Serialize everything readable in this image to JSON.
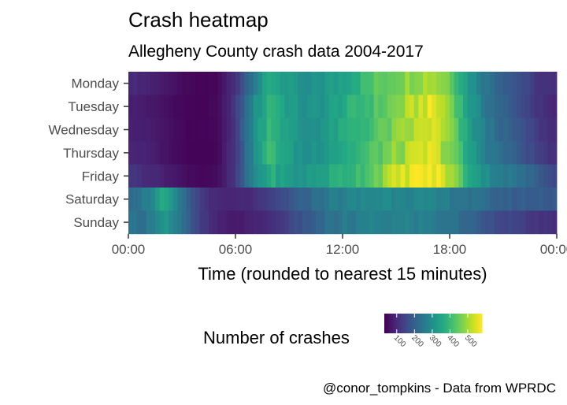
{
  "chart_data": {
    "type": "heatmap",
    "title": "Crash heatmap",
    "subtitle": "Allegheny County crash data 2004-2017",
    "xlabel": "Time (rounded to nearest 15 minutes)",
    "ylabel": "",
    "caption": "@conor_tompkins - Data from WPRDC",
    "x_ticks": [
      "00:00",
      "06:00",
      "12:00",
      "18:00",
      "00:00"
    ],
    "x_range_hours": [
      0,
      24
    ],
    "bin_minutes": 15,
    "days": [
      "Monday",
      "Tuesday",
      "Wednesday",
      "Thursday",
      "Friday",
      "Saturday",
      "Sunday"
    ],
    "legend": {
      "title": "Number of crashes",
      "placement": "bottom",
      "ticks": [
        100,
        200,
        300,
        400,
        500
      ],
      "range": [
        30,
        580
      ],
      "palette": "viridis"
    },
    "day_profiles": [
      {
        "day": "Monday",
        "hours": [
          0,
          1,
          2,
          3,
          4,
          5,
          6,
          7,
          8,
          9,
          10,
          11,
          12,
          13,
          14,
          15,
          16,
          17,
          18,
          19,
          20,
          21,
          22,
          23,
          24
        ],
        "values": [
          100,
          85,
          70,
          45,
          35,
          40,
          110,
          260,
          370,
          320,
          290,
          320,
          350,
          390,
          440,
          470,
          500,
          520,
          470,
          330,
          250,
          200,
          160,
          110,
          100
        ]
      },
      {
        "day": "Tuesday",
        "hours": [
          0,
          1,
          2,
          3,
          4,
          5,
          6,
          7,
          8,
          9,
          10,
          11,
          12,
          13,
          14,
          15,
          16,
          17,
          18,
          19,
          20,
          21,
          22,
          23,
          24
        ],
        "values": [
          80,
          70,
          55,
          40,
          35,
          40,
          120,
          290,
          400,
          330,
          300,
          320,
          360,
          390,
          430,
          470,
          520,
          560,
          490,
          340,
          250,
          200,
          160,
          110,
          80
        ]
      },
      {
        "day": "Wednesday",
        "hours": [
          0,
          1,
          2,
          3,
          4,
          5,
          6,
          7,
          8,
          9,
          10,
          11,
          12,
          13,
          14,
          15,
          16,
          17,
          18,
          19,
          20,
          21,
          22,
          23,
          24
        ],
        "values": [
          85,
          75,
          60,
          40,
          35,
          40,
          120,
          300,
          410,
          330,
          300,
          320,
          360,
          390,
          430,
          470,
          510,
          550,
          480,
          340,
          260,
          210,
          170,
          120,
          90
        ]
      },
      {
        "day": "Thursday",
        "hours": [
          0,
          1,
          2,
          3,
          4,
          5,
          6,
          7,
          8,
          9,
          10,
          11,
          12,
          13,
          14,
          15,
          16,
          17,
          18,
          19,
          20,
          21,
          22,
          23,
          24
        ],
        "values": [
          90,
          80,
          60,
          40,
          35,
          40,
          120,
          290,
          410,
          330,
          300,
          330,
          360,
          390,
          440,
          480,
          520,
          550,
          480,
          350,
          270,
          220,
          180,
          130,
          100
        ]
      },
      {
        "day": "Friday",
        "hours": [
          0,
          1,
          2,
          3,
          4,
          5,
          6,
          7,
          8,
          9,
          10,
          11,
          12,
          13,
          14,
          15,
          16,
          17,
          18,
          19,
          20,
          21,
          22,
          23,
          24
        ],
        "values": [
          120,
          100,
          80,
          55,
          40,
          45,
          120,
          280,
          370,
          320,
          320,
          350,
          380,
          410,
          470,
          530,
          570,
          575,
          520,
          380,
          300,
          260,
          230,
          190,
          150
        ]
      },
      {
        "day": "Saturday",
        "hours": [
          0,
          1,
          2,
          3,
          4,
          5,
          6,
          7,
          8,
          9,
          10,
          11,
          12,
          13,
          14,
          15,
          16,
          17,
          18,
          19,
          20,
          21,
          22,
          23,
          24
        ],
        "values": [
          230,
          260,
          360,
          230,
          130,
          85,
          85,
          100,
          130,
          170,
          210,
          250,
          270,
          280,
          290,
          290,
          280,
          270,
          260,
          240,
          220,
          200,
          190,
          190,
          190
        ]
      },
      {
        "day": "Sunday",
        "hours": [
          0,
          1,
          2,
          3,
          4,
          5,
          6,
          7,
          8,
          9,
          10,
          11,
          12,
          13,
          14,
          15,
          16,
          17,
          18,
          19,
          20,
          21,
          22,
          23,
          24
        ],
        "values": [
          230,
          240,
          330,
          230,
          130,
          80,
          70,
          80,
          100,
          140,
          180,
          220,
          250,
          260,
          270,
          270,
          270,
          260,
          240,
          210,
          180,
          150,
          130,
          110,
          100
        ]
      }
    ]
  }
}
